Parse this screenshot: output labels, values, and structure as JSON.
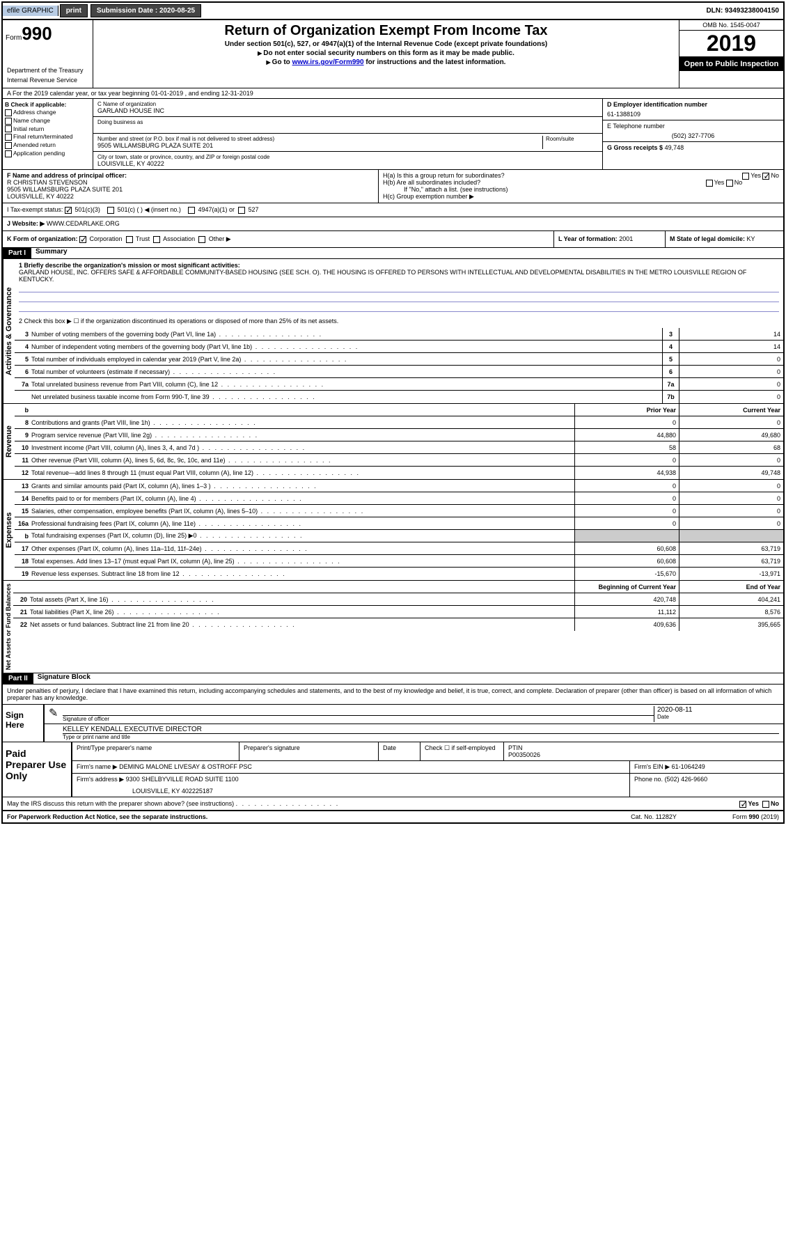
{
  "topbar": {
    "efile": "efile GRAPHIC",
    "print": "print",
    "submission_label": "Submission Date :",
    "submission_date": "2020-08-25",
    "dln_label": "DLN:",
    "dln": "93493238004150"
  },
  "header": {
    "form_word": "Form",
    "form_num": "990",
    "title": "Return of Organization Exempt From Income Tax",
    "subtitle1": "Under section 501(c), 527, or 4947(a)(1) of the Internal Revenue Code (except private foundations)",
    "subtitle2": "Do not enter social security numbers on this form as it may be made public.",
    "subtitle3_pre": "Go to ",
    "subtitle3_link": "www.irs.gov/Form990",
    "subtitle3_post": " for instructions and the latest information.",
    "omb": "OMB No. 1545-0047",
    "year": "2019",
    "open": "Open to Public Inspection",
    "dept1": "Department of the Treasury",
    "dept2": "Internal Revenue Service"
  },
  "rowA": "A For the 2019 calendar year, or tax year beginning 01-01-2019    , and ending 12-31-2019",
  "sectionB": {
    "header": "B Check if applicable:",
    "opts": [
      "Address change",
      "Name change",
      "Initial return",
      "Final return/terminated",
      "Amended return",
      "Application pending"
    ]
  },
  "sectionC": {
    "name_label": "C Name of organization",
    "name": "GARLAND HOUSE INC",
    "dba_label": "Doing business as",
    "addr_label": "Number and street (or P.O. box if mail is not delivered to street address)",
    "room_label": "Room/suite",
    "addr": "9505 WILLAMSBURG PLAZA SUITE 201",
    "city_label": "City or town, state or province, country, and ZIP or foreign postal code",
    "city": "LOUISVILLE, KY  40222"
  },
  "sectionD": {
    "ein_label": "D Employer identification number",
    "ein": "61-1388109",
    "phone_label": "E Telephone number",
    "phone": "(502) 327-7706",
    "gross_label": "G Gross receipts $",
    "gross": "49,748"
  },
  "sectionF": {
    "label": "F  Name and address of principal officer:",
    "name": "R CHRISTIAN STEVENSON",
    "addr1": "9505 WILLAMSBURG PLAZA SUITE 201",
    "addr2": "LOUISVILLE, KY  40222"
  },
  "sectionH": {
    "ha": "H(a)  Is this a group return for subordinates?",
    "hb": "H(b)  Are all subordinates included?",
    "hb_note": "If \"No,\" attach a list. (see instructions)",
    "hc": "H(c)  Group exemption number ▶",
    "yes": "Yes",
    "no": "No"
  },
  "rowI": {
    "label": "I    Tax-exempt status:",
    "opt1": "501(c)(3)",
    "opt2": "501(c) (  ) ◀ (insert no.)",
    "opt3": "4947(a)(1) or",
    "opt4": "527"
  },
  "rowJ": {
    "label": "J    Website: ▶",
    "value": "WWW.CEDARLAKE.ORG"
  },
  "rowK": {
    "label": "K Form of organization:",
    "opts": [
      "Corporation",
      "Trust",
      "Association",
      "Other ▶"
    ],
    "L_label": "L Year of formation:",
    "L_val": "2001",
    "M_label": "M State of legal domicile:",
    "M_val": "KY"
  },
  "part1": {
    "header": "Part I",
    "title": "Summary",
    "q1": "1  Briefly describe the organization's mission or most significant activities:",
    "mission": "GARLAND HOUSE, INC. OFFERS SAFE & AFFORDABLE COMMUNITY-BASED HOUSING (SEE SCH. O). THE HOUSING IS OFFERED TO PERSONS WITH INTELLECTUAL AND DEVELOPMENTAL DISABILITIES IN THE METRO LOUISVILLE REGION OF KENTUCKY.",
    "q2": "2   Check this box ▶ ☐  if the organization discontinued its operations or disposed of more than 25% of its net assets."
  },
  "vert_labels": {
    "governance": "Activities & Governance",
    "revenue": "Revenue",
    "expenses": "Expenses",
    "netassets": "Net Assets or Fund Balances"
  },
  "gov_lines": [
    {
      "n": "3",
      "t": "Number of voting members of the governing body (Part VI, line 1a)",
      "box": "3",
      "v": "14"
    },
    {
      "n": "4",
      "t": "Number of independent voting members of the governing body (Part VI, line 1b)",
      "box": "4",
      "v": "14"
    },
    {
      "n": "5",
      "t": "Total number of individuals employed in calendar year 2019 (Part V, line 2a)",
      "box": "5",
      "v": "0"
    },
    {
      "n": "6",
      "t": "Total number of volunteers (estimate if necessary)",
      "box": "6",
      "v": "0"
    },
    {
      "n": "7a",
      "t": "Total unrelated business revenue from Part VIII, column (C), line 12",
      "box": "7a",
      "v": "0"
    },
    {
      "n": "",
      "t": "Net unrelated business taxable income from Form 990-T, line 39",
      "box": "7b",
      "v": "0"
    }
  ],
  "col_headers": {
    "b": "b",
    "prior": "Prior Year",
    "current": "Current Year"
  },
  "rev_lines": [
    {
      "n": "8",
      "t": "Contributions and grants (Part VIII, line 1h)",
      "p": "0",
      "c": "0"
    },
    {
      "n": "9",
      "t": "Program service revenue (Part VIII, line 2g)",
      "p": "44,880",
      "c": "49,680"
    },
    {
      "n": "10",
      "t": "Investment income (Part VIII, column (A), lines 3, 4, and 7d )",
      "p": "58",
      "c": "68"
    },
    {
      "n": "11",
      "t": "Other revenue (Part VIII, column (A), lines 5, 6d, 8c, 9c, 10c, and 11e)",
      "p": "0",
      "c": "0"
    },
    {
      "n": "12",
      "t": "Total revenue—add lines 8 through 11 (must equal Part VIII, column (A), line 12)",
      "p": "44,938",
      "c": "49,748"
    }
  ],
  "exp_lines": [
    {
      "n": "13",
      "t": "Grants and similar amounts paid (Part IX, column (A), lines 1–3 )",
      "p": "0",
      "c": "0"
    },
    {
      "n": "14",
      "t": "Benefits paid to or for members (Part IX, column (A), line 4)",
      "p": "0",
      "c": "0"
    },
    {
      "n": "15",
      "t": "Salaries, other compensation, employee benefits (Part IX, column (A), lines 5–10)",
      "p": "0",
      "c": "0"
    },
    {
      "n": "16a",
      "t": "Professional fundraising fees (Part IX, column (A), line 11e)",
      "p": "0",
      "c": "0"
    },
    {
      "n": "b",
      "t": "Total fundraising expenses (Part IX, column (D), line 25) ▶0",
      "p": "",
      "c": "",
      "shaded": true
    },
    {
      "n": "17",
      "t": "Other expenses (Part IX, column (A), lines 11a–11d, 11f–24e)",
      "p": "60,608",
      "c": "63,719"
    },
    {
      "n": "18",
      "t": "Total expenses. Add lines 13–17 (must equal Part IX, column (A), line 25)",
      "p": "60,608",
      "c": "63,719"
    },
    {
      "n": "19",
      "t": "Revenue less expenses. Subtract line 18 from line 12",
      "p": "-15,670",
      "c": "-13,971"
    }
  ],
  "na_headers": {
    "begin": "Beginning of Current Year",
    "end": "End of Year"
  },
  "na_lines": [
    {
      "n": "20",
      "t": "Total assets (Part X, line 16)",
      "p": "420,748",
      "c": "404,241"
    },
    {
      "n": "21",
      "t": "Total liabilities (Part X, line 26)",
      "p": "11,112",
      "c": "8,576"
    },
    {
      "n": "22",
      "t": "Net assets or fund balances. Subtract line 21 from line 20",
      "p": "409,636",
      "c": "395,665"
    }
  ],
  "part2": {
    "header": "Part II",
    "title": "Signature Block",
    "declaration": "Under penalties of perjury, I declare that I have examined this return, including accompanying schedules and statements, and to the best of my knowledge and belief, it is true, correct, and complete. Declaration of preparer (other than officer) is based on all information of which preparer has any knowledge."
  },
  "sign": {
    "here": "Sign Here",
    "sig_officer": "Signature of officer",
    "date": "Date",
    "date_val": "2020-08-11",
    "name": "KELLEY KENDALL  EXECUTIVE DIRECTOR",
    "name_label": "Type or print name and title"
  },
  "preparer": {
    "label": "Paid Preparer Use Only",
    "print_name": "Print/Type preparer's name",
    "sig": "Preparer's signature",
    "date": "Date",
    "check": "Check ☐ if self-employed",
    "ptin_label": "PTIN",
    "ptin": "P00350026",
    "firm_name_label": "Firm's name    ▶",
    "firm_name": "DEMING MALONE LIVESAY & OSTROFF PSC",
    "firm_ein_label": "Firm's EIN ▶",
    "firm_ein": "61-1064249",
    "firm_addr_label": "Firm's address ▶",
    "firm_addr1": "9300 SHELBYVILLE ROAD SUITE 1100",
    "firm_addr2": "LOUISVILLE, KY  402225187",
    "phone_label": "Phone no.",
    "phone": "(502) 426-9660"
  },
  "discuss": "May the IRS discuss this return with the preparer shown above? (see instructions)",
  "footer": {
    "left": "For Paperwork Reduction Act Notice, see the separate instructions.",
    "mid": "Cat. No. 11282Y",
    "right": "Form 990 (2019)"
  }
}
